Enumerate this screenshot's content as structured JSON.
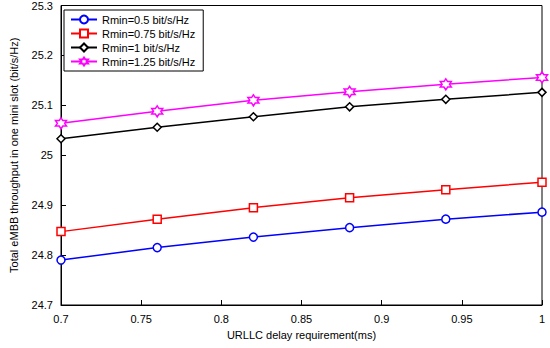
{
  "chart_data": {
    "type": "line",
    "x_label": "URLLC delay requirement(ms)",
    "y_label": "Total eMBB throughput in one mini slot (bit/s/Hz)",
    "x": [
      0.7,
      0.76,
      0.82,
      0.88,
      0.94,
      1.0
    ],
    "series": [
      {
        "name": "Rmin=0.5 bit/s/Hz",
        "color": "#0000ff",
        "marker": "circle",
        "values": [
          24.79,
          24.815,
          24.836,
          24.855,
          24.872,
          24.886
        ]
      },
      {
        "name": "Rmin=0.75 bit/s/Hz",
        "color": "#ff0000",
        "marker": "square",
        "values": [
          24.847,
          24.872,
          24.895,
          24.915,
          24.931,
          24.946
        ]
      },
      {
        "name": "Rmin=1 bit/s/Hz",
        "color": "#000000",
        "marker": "diamond",
        "values": [
          25.033,
          25.056,
          25.077,
          25.097,
          25.112,
          25.126
        ]
      },
      {
        "name": "Rmin=1.25 bit/s/Hz",
        "color": "#ff00ff",
        "marker": "hexagram",
        "values": [
          25.064,
          25.088,
          25.11,
          25.127,
          25.142,
          25.156
        ]
      }
    ],
    "xlim": [
      0.7,
      1
    ],
    "xticks": [
      0.7,
      0.75,
      0.8,
      0.85,
      0.9,
      0.95,
      1
    ],
    "ylim": [
      24.7,
      25.3
    ],
    "yticks": [
      24.7,
      24.8,
      24.9,
      25,
      25.1,
      25.2,
      25.3
    ],
    "grid": false,
    "legend": "upper left"
  }
}
